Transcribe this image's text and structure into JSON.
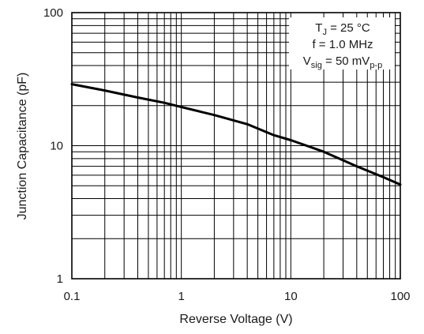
{
  "chart_data": {
    "type": "line",
    "title": "",
    "xlabel": "Reverse Voltage (V)",
    "ylabel": "Junction Capacitance (pF)",
    "xscale": "log",
    "yscale": "log",
    "xlim": [
      0.1,
      100
    ],
    "ylim": [
      1,
      100
    ],
    "grid": true,
    "x_tick_labels": [
      "0.1",
      "1",
      "10",
      "100"
    ],
    "y_tick_labels": [
      "1",
      "10",
      "100"
    ],
    "series": [
      {
        "x": [
          0.1,
          0.2,
          0.4,
          0.7,
          1,
          2,
          4,
          7,
          10,
          20,
          40,
          70,
          100
        ],
        "y": [
          29,
          26,
          23,
          21,
          19.5,
          17,
          14.5,
          12,
          11,
          9,
          7,
          5.8,
          5.1
        ],
        "color": "#000000"
      }
    ],
    "annotation": {
      "line1": {
        "prefix": "T",
        "sub": "J",
        "suffix": " = 25 °C"
      },
      "line2": "f = 1.0 MHz",
      "line3": {
        "prefix": "V",
        "sub": "sig",
        "suffix": " = 50 mV",
        "sub2": "p-p"
      }
    }
  }
}
